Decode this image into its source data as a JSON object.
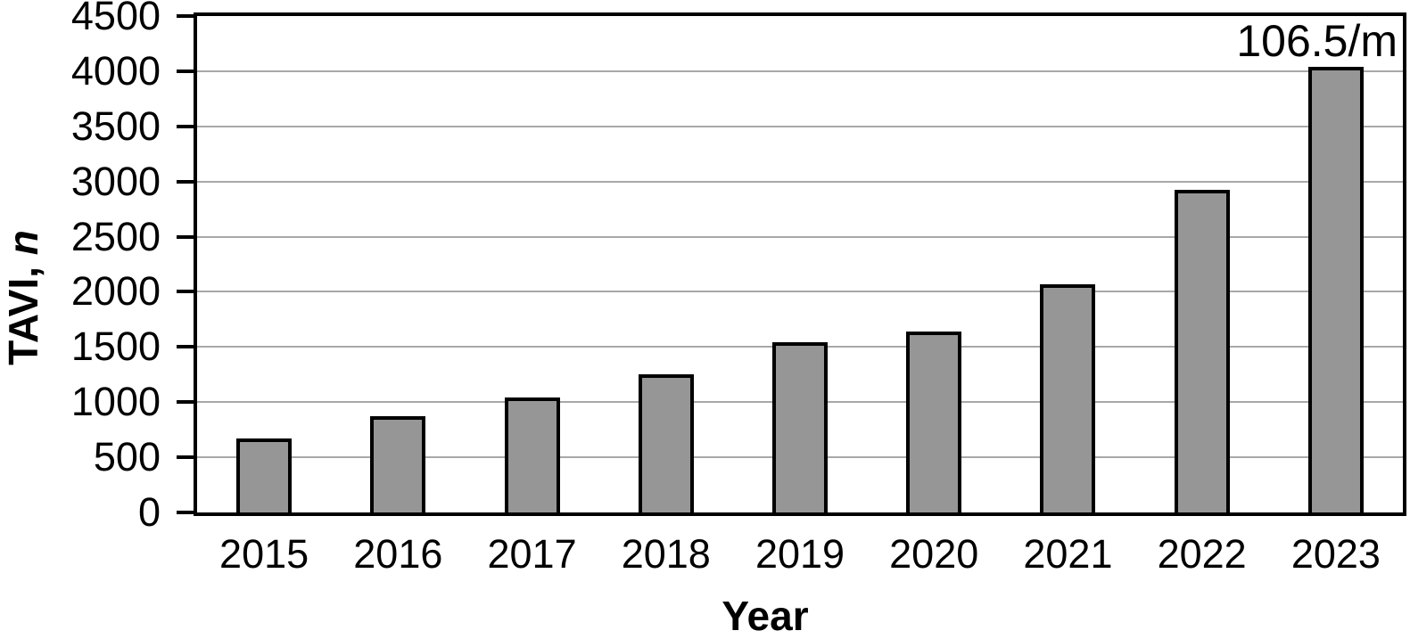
{
  "figure": {
    "background": "#ffffff"
  },
  "chart_data": {
    "type": "bar",
    "title": "",
    "categories": [
      "2015",
      "2016",
      "2017",
      "2018",
      "2019",
      "2020",
      "2021",
      "2022",
      "2023"
    ],
    "values": [
      670,
      870,
      1040,
      1250,
      1545,
      1640,
      2070,
      2925,
      4040
    ],
    "xlabel": "Year",
    "ylabel": "TAVI, n",
    "ylabel_prefix": "TAVI, ",
    "ylabel_unit": "n",
    "ylim": [
      0,
      4500
    ],
    "yticks": [
      0,
      500,
      1000,
      1500,
      2000,
      2500,
      3000,
      3500,
      4000,
      4500
    ],
    "grid": "horizontal-major",
    "legend": "none",
    "annotation": {
      "text": "106.5/m",
      "target_category": "2023",
      "position": "top-right"
    },
    "colors": {
      "bar_fill": "#969696",
      "bar_outline": "#000000",
      "gridline": "#a8a8a8",
      "axis": "#000000",
      "background": "#ffffff",
      "text": "#000000"
    }
  }
}
